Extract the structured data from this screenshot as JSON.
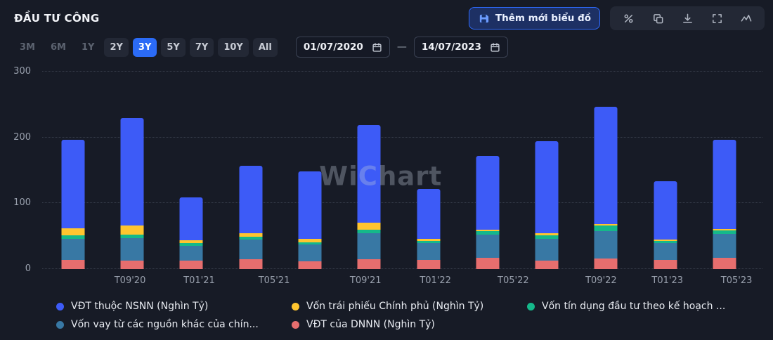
{
  "header": {
    "title": "ĐẦU TƯ CÔNG",
    "add_chart_button_label": "Thêm mới biểu đồ",
    "action_icons": [
      "percent-icon",
      "copy-icon",
      "download-icon",
      "fullscreen-icon",
      "sparkline-icon"
    ]
  },
  "toolbar": {
    "ranges": [
      {
        "label": "3M",
        "state": "dimmed"
      },
      {
        "label": "6M",
        "state": "dimmed"
      },
      {
        "label": "1Y",
        "state": "dimmed"
      },
      {
        "label": "2Y",
        "state": "normal"
      },
      {
        "label": "3Y",
        "state": "selected"
      },
      {
        "label": "5Y",
        "state": "normal"
      },
      {
        "label": "7Y",
        "state": "normal"
      },
      {
        "label": "10Y",
        "state": "normal"
      },
      {
        "label": "All",
        "state": "normal"
      }
    ],
    "date_from": "01/07/2020",
    "date_separator": "—",
    "date_to": "14/07/2023"
  },
  "chart_data": {
    "type": "bar",
    "stacked": true,
    "title": "ĐẦU TƯ CÔNG",
    "xlabel": "",
    "ylabel": "",
    "ylim": [
      0,
      300
    ],
    "y_ticks": [
      300,
      200,
      100,
      0
    ],
    "x_tick_labels": [
      "T09'20",
      "T01'21",
      "T05'21",
      "T09'21",
      "T01'22",
      "T05'22",
      "T09'22",
      "T01'23",
      "T05'23"
    ],
    "bar_count": 12,
    "grid": "horizontal-dotted",
    "legend_position": "bottom",
    "watermark": "WiChart",
    "series": [
      {
        "key": "vdt-dnnn",
        "name": "VĐT của DNNN (Nghìn Tỷ)",
        "color": "#E66E6E",
        "values": [
          14,
          13,
          13,
          15,
          12,
          15,
          14,
          17,
          13,
          16,
          14,
          17
        ]
      },
      {
        "key": "von-vay-khac",
        "name": "Vốn vay từ các nguồn khác của chín...",
        "color": "#3878A4",
        "values": [
          32,
          34,
          22,
          30,
          25,
          40,
          25,
          35,
          33,
          42,
          25,
          36
        ]
      },
      {
        "key": "von-tin-dung",
        "name": "Vốn tín dụng đầu tư theo kế hoạch ...",
        "color": "#15B88A",
        "values": [
          5,
          5,
          5,
          4,
          4,
          5,
          4,
          6,
          5,
          8,
          4,
          6
        ]
      },
      {
        "key": "trai-phieu-cp",
        "name": "Vốn trái phiếu Chính phủ (Nghìn Tỷ)",
        "color": "#FFC52F",
        "values": [
          11,
          14,
          4,
          6,
          5,
          10,
          3,
          2,
          4,
          2,
          2,
          2
        ]
      },
      {
        "key": "vdt-nsnn",
        "name": "VĐT thuộc NSNN (Nghìn Tỷ)",
        "color": "#3D5BF7",
        "values": [
          134,
          164,
          65,
          102,
          102,
          149,
          76,
          112,
          139,
          179,
          89,
          135
        ]
      }
    ]
  },
  "legend": {
    "items": [
      {
        "key": "vdt-nsnn",
        "label": "VĐT thuộc NSNN (Nghìn Tỷ)",
        "color": "#3D5BF7"
      },
      {
        "key": "trai-phieu-cp",
        "label": "Vốn trái phiếu Chính phủ (Nghìn Tỷ)",
        "color": "#FFC52F"
      },
      {
        "key": "von-tin-dung",
        "label": "Vốn tín dụng đầu tư theo kế hoạch ...",
        "color": "#15B88A"
      },
      {
        "key": "von-vay-khac",
        "label": "Vốn vay từ các nguồn khác của chín...",
        "color": "#3878A4"
      },
      {
        "key": "vdt-dnnn",
        "label": "VĐT của DNNN (Nghìn Tỷ)",
        "color": "#E66E6E"
      }
    ]
  },
  "colors": {
    "background": "#171B26",
    "accent": "#2B6BF6",
    "text_primary": "#F2F4F8",
    "text_muted": "#99A0AD"
  }
}
